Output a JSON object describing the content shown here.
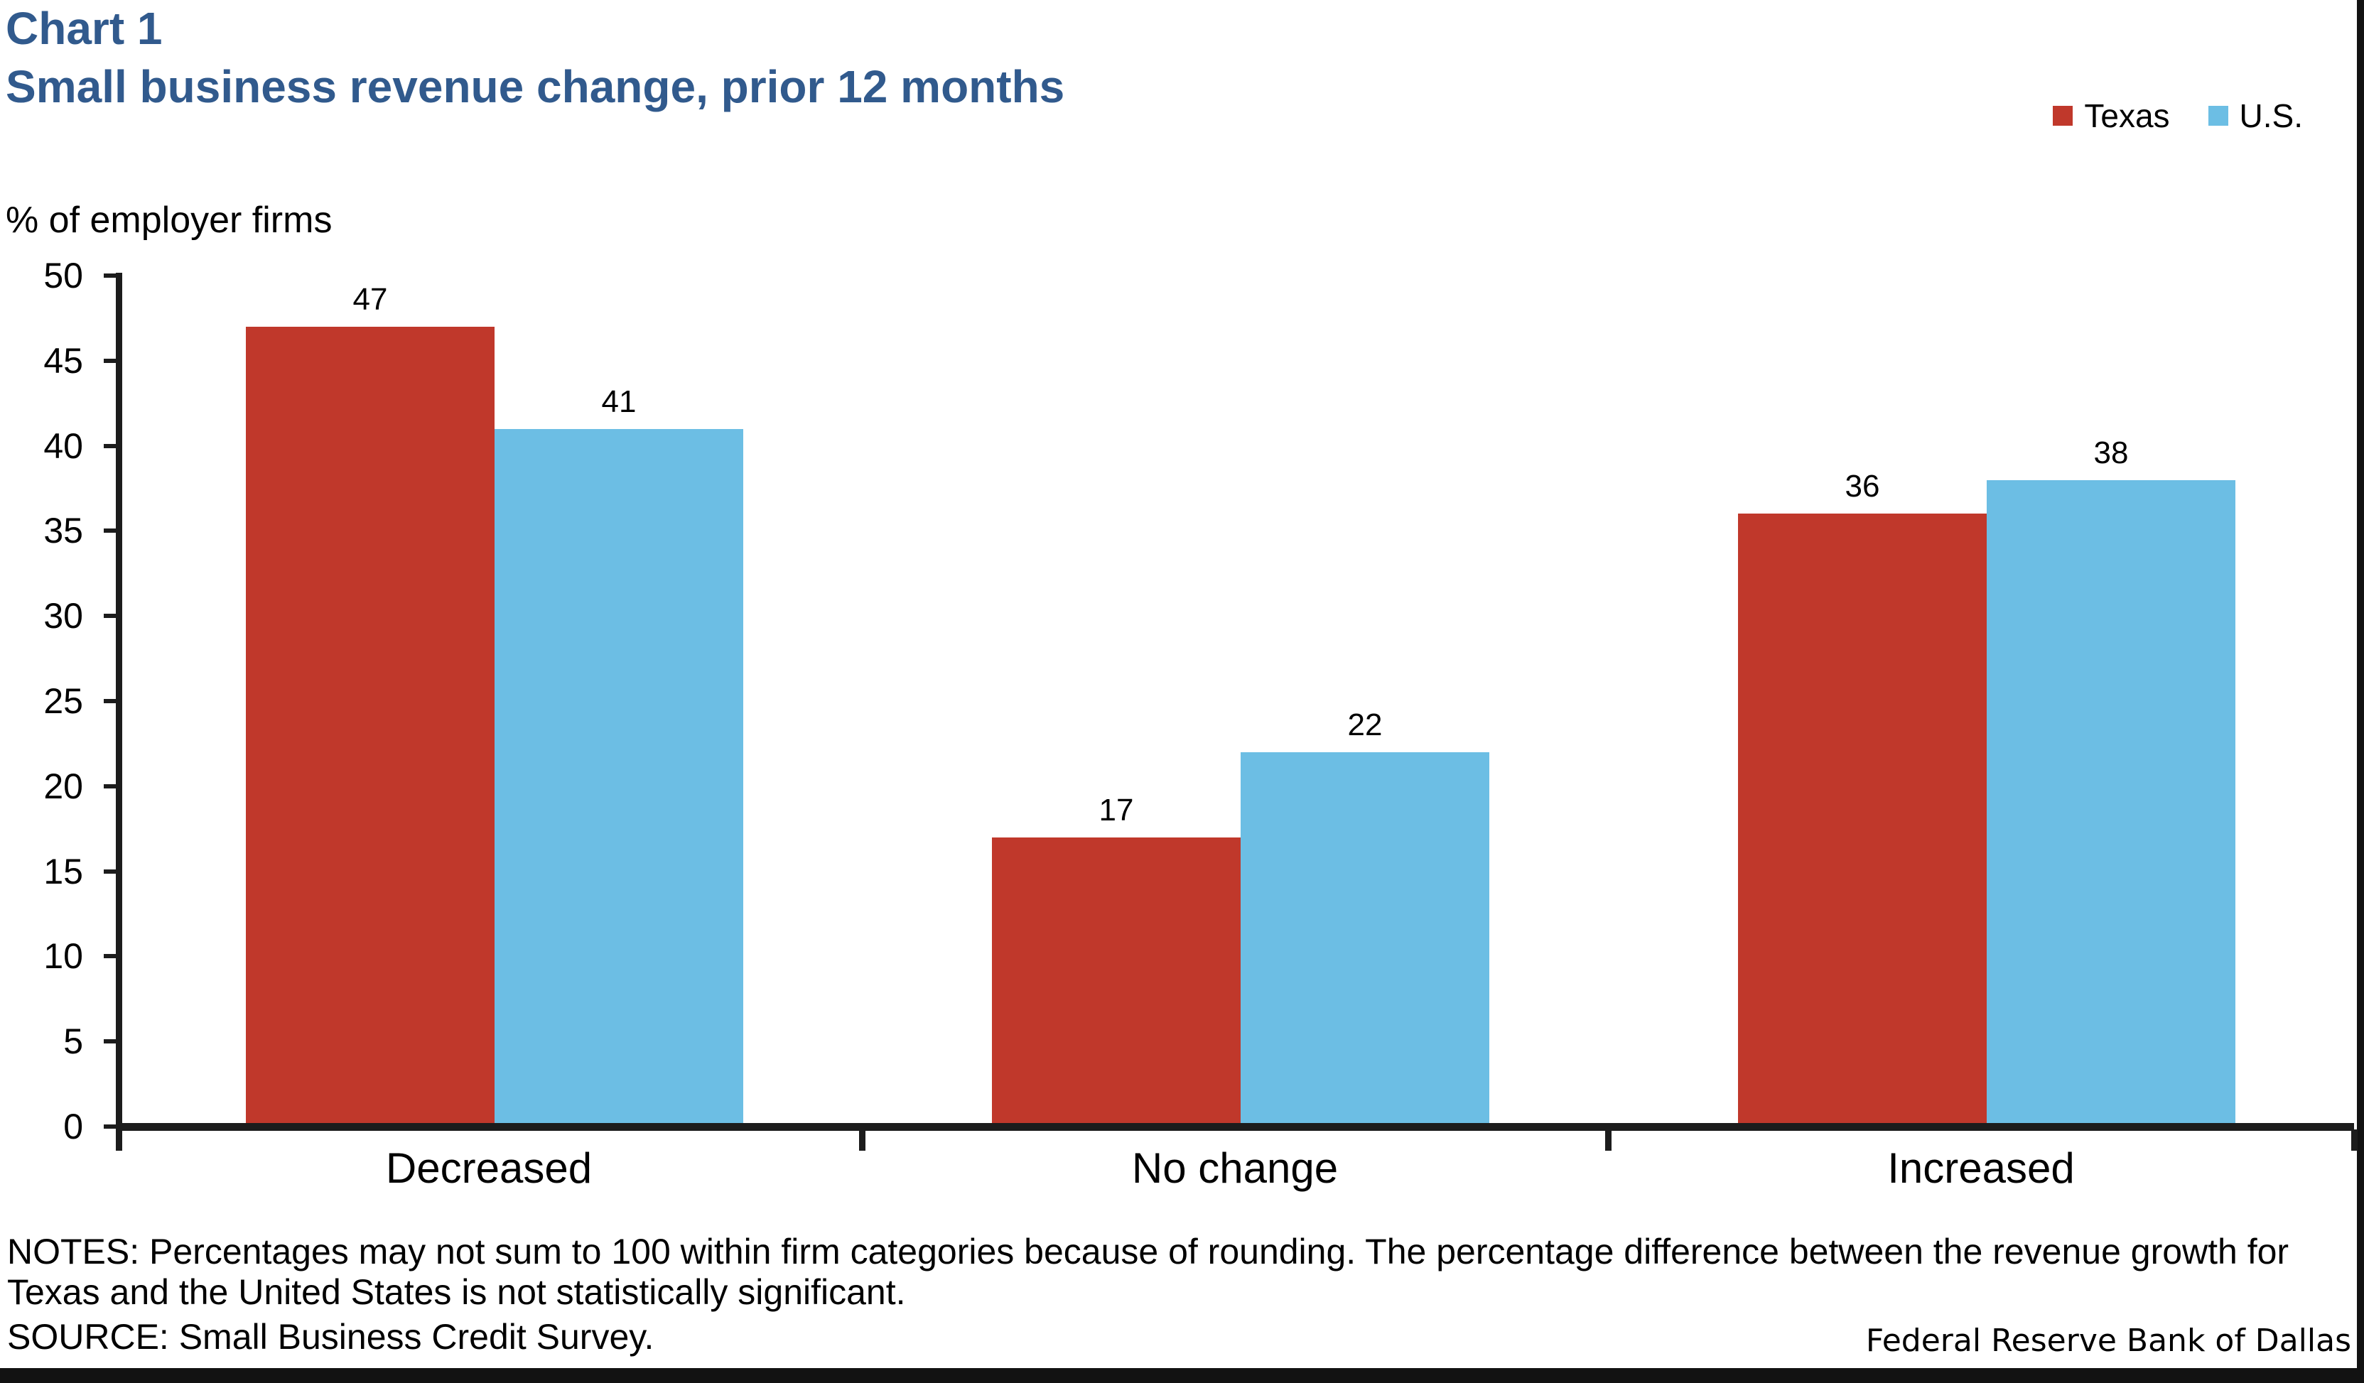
{
  "header": {
    "chart_label": "Chart 1",
    "title": "Small business revenue change, prior 12 months"
  },
  "chart_data": {
    "type": "bar",
    "title": "Small business revenue change, prior 12 months",
    "unit_label": "% of employer firms",
    "categories": [
      "Decreased",
      "No change",
      "Increased"
    ],
    "series": [
      {
        "name": "Texas",
        "color": "#C0382B",
        "values": [
          47,
          17,
          36
        ]
      },
      {
        "name": "U.S.",
        "color": "#6CBEE4",
        "values": [
          41,
          22,
          38
        ]
      }
    ],
    "ylim": [
      0,
      50
    ],
    "ytick_step": 5,
    "yticks": [
      0,
      5,
      10,
      15,
      20,
      25,
      30,
      35,
      40,
      45,
      50
    ],
    "grid": false,
    "legend_position": "top-right",
    "bar_value_labels": true
  },
  "footer": {
    "notes": "NOTES: Percentages may not sum to 100 within firm categories because of rounding. The percentage difference between the revenue growth for Texas and the United States is not statistically significant.",
    "source": "SOURCE: Small Business Credit Survey.",
    "attribution": "Federal Reserve Bank of Dallas"
  },
  "colors": {
    "title_blue": "#315A8D",
    "axis": "#1C1C1C",
    "texas_red": "#C0382B",
    "us_blue": "#6CBEE4"
  }
}
